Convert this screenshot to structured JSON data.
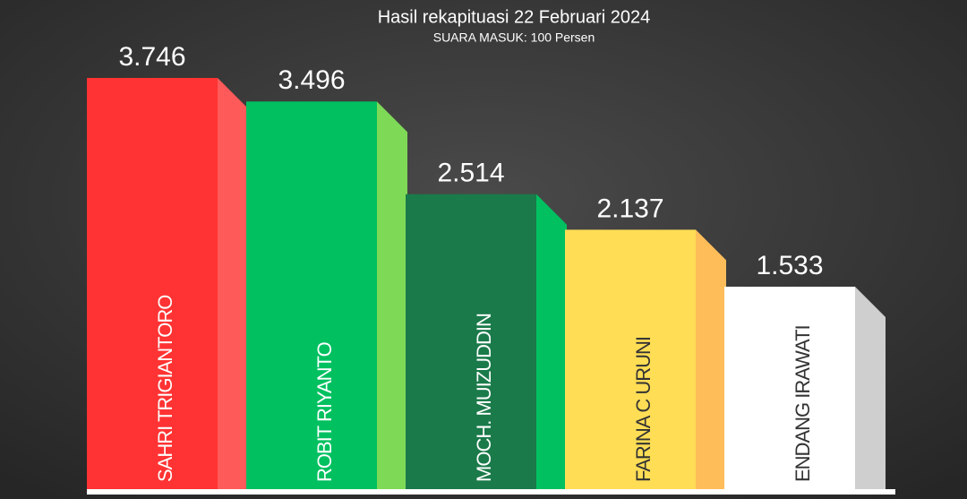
{
  "chart_data": {
    "type": "bar3d",
    "title": "Hasil rekapituasi 22 Februari 2024",
    "subtitle": "SUARA MASUK: 100 Persen",
    "categories": [
      "SAHRI TRIGIANTORO",
      "ROBIT RIYANTO",
      "MOCH. MUIZUDDIN",
      "FARINA C URUNI",
      "ENDANG IRAWATI"
    ],
    "values": [
      3746,
      3496,
      2514,
      2137,
      1533
    ],
    "value_labels": [
      "3.746",
      "3.496",
      "2.514",
      "2.137",
      "1.533"
    ],
    "colors": [
      "#ff3333",
      "#00c060",
      "#1a7a4a",
      "#ffdd55",
      "#ffffff"
    ],
    "side_colors": [
      "#ff5a5a",
      "#7ed957",
      "#00c060",
      "#ffbd59",
      "#cfcfcf"
    ],
    "label_colors": [
      "#ffffff",
      "#ffffff",
      "#ffffff",
      "#333333",
      "#333333"
    ]
  }
}
